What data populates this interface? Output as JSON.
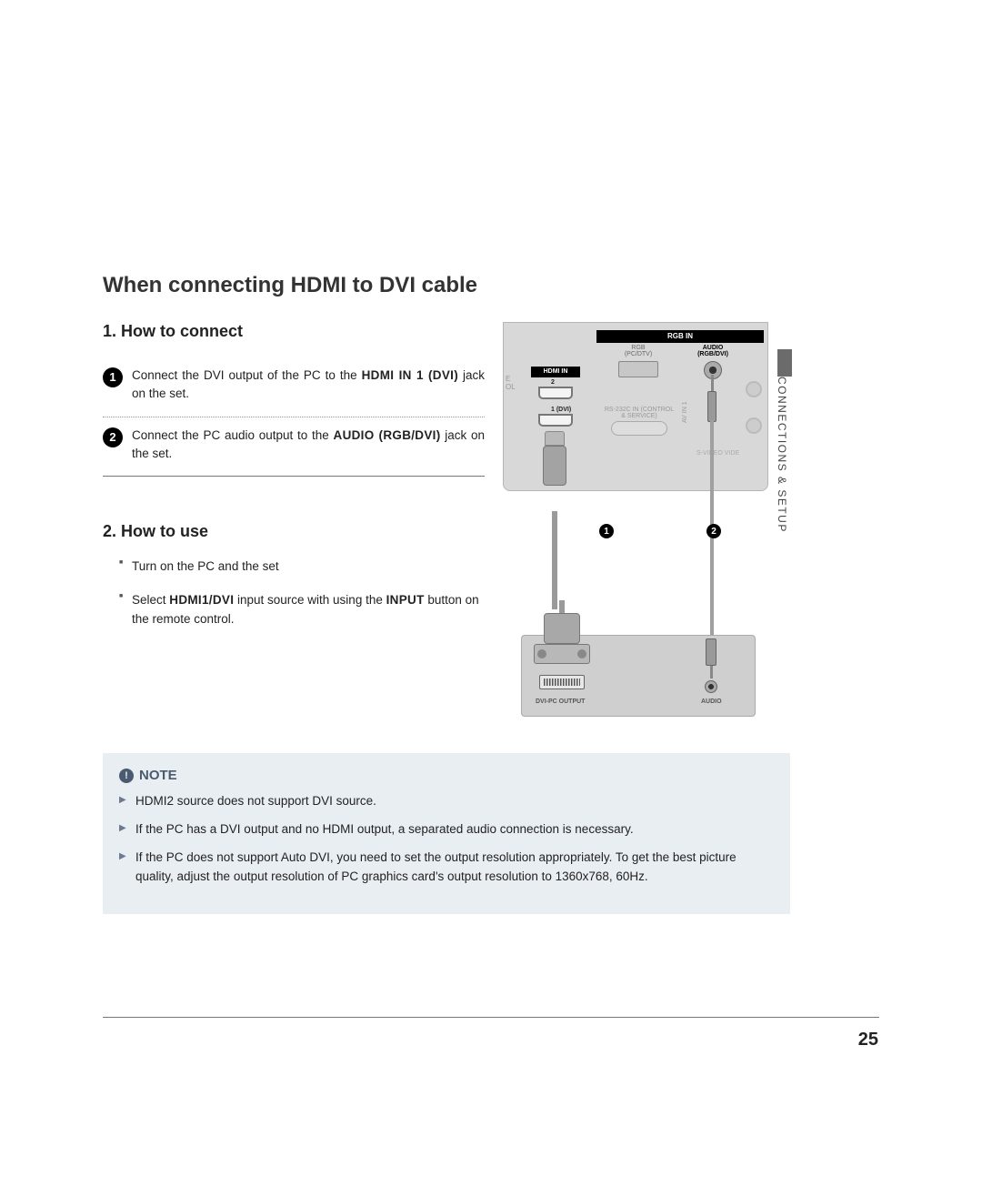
{
  "title": "When connecting HDMI to DVI cable",
  "section1": {
    "heading": "1. How to connect",
    "steps": [
      {
        "num": "1",
        "pre": "Connect the DVI output of the PC to the ",
        "bold": "HDMI IN 1 (DVI)",
        "post": " jack on the set."
      },
      {
        "num": "2",
        "pre": "Connect the PC audio output to the ",
        "bold": "AUDIO (RGB/DVI)",
        "post": " jack on the set."
      }
    ]
  },
  "section2": {
    "heading": "2. How to use",
    "items": [
      {
        "text": "Turn on the PC and the set"
      },
      {
        "pre": "Select ",
        "bold1": "HDMI1/DVI",
        "mid": " input source with using the ",
        "bold2": "INPUT",
        "post": " button on the remote control."
      }
    ]
  },
  "diagram": {
    "rgb_in": "RGB IN",
    "rgb": "RGB\n(PC/DTV)",
    "audio": "AUDIO\n(RGB/DVI)",
    "hdmi_in": "HDMI IN",
    "hdmi2": "2",
    "hdmi1": "1 (DVI)",
    "rs232": "RS-232C IN\n(CONTROL & SERVICE)",
    "avin": "AV IN 1",
    "svideo": "S-VIDEO    VIDE",
    "left_cut": "E\nOL",
    "callout1": "1",
    "callout2": "2",
    "dvi_out": "DVI-PC OUTPUT",
    "audio_out": "AUDIO"
  },
  "side_label": "CONNECTIONS & SETUP",
  "note": {
    "title": "NOTE",
    "items": [
      "HDMI2 source does not support DVI source.",
      "If the PC has a DVI output and no HDMI output, a separated audio connection is necessary.",
      "If the PC does not support Auto DVI, you need to set the output resolution appropriately. To get the best picture quality, adjust the output resolution of PC graphics card's output resolution to 1360x768, 60Hz."
    ]
  },
  "page_number": "25",
  "colors": {
    "note_bg": "#e9eef3",
    "note_accent": "#4a5a70",
    "panel": "#d8d8d8",
    "side_tab": "#6b6b6b"
  }
}
